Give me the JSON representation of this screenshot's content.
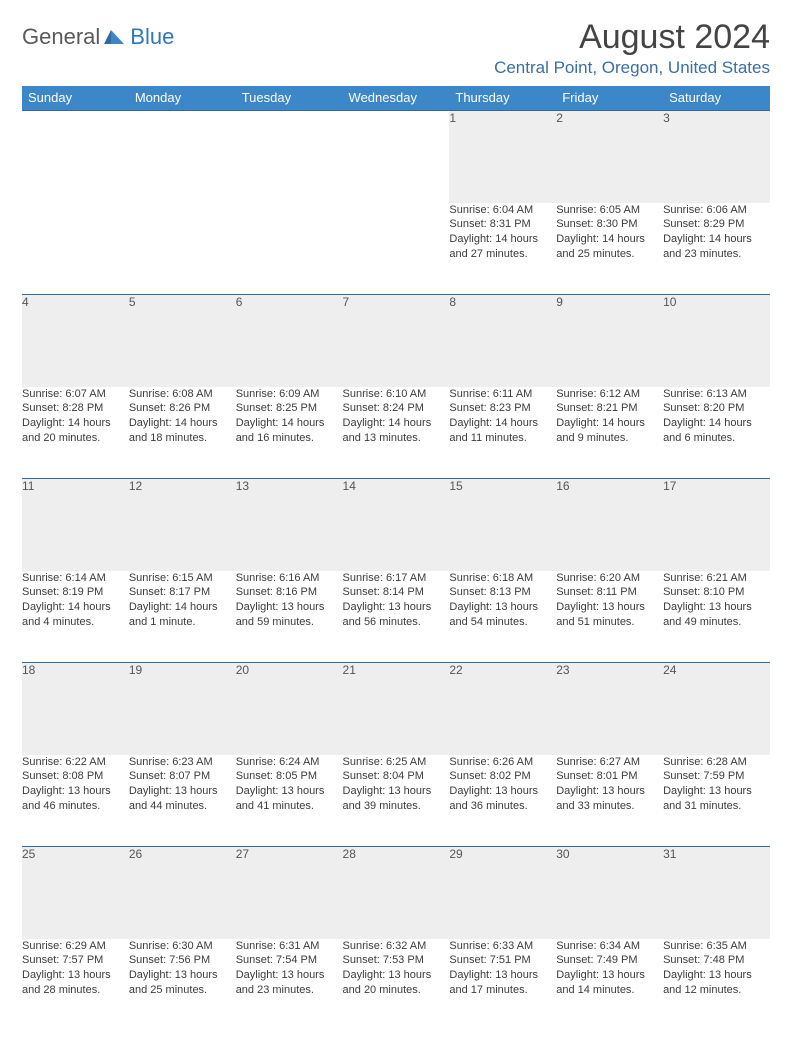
{
  "logo": {
    "part1": "General",
    "part2": "Blue"
  },
  "title": "August 2024",
  "location": "Central Point, Oregon, United States",
  "colors": {
    "header_bg": "#3b87c8",
    "header_text": "#ffffff",
    "accent": "#2f77b6",
    "rule": "#2f6aa0",
    "daynum_bg": "#eeeeee",
    "text": "#3a3a3a",
    "location_text": "#3a6fa3"
  },
  "days_of_week": [
    "Sunday",
    "Monday",
    "Tuesday",
    "Wednesday",
    "Thursday",
    "Friday",
    "Saturday"
  ],
  "weeks": [
    {
      "nums": [
        "",
        "",
        "",
        "",
        "1",
        "2",
        "3"
      ],
      "cells": [
        null,
        null,
        null,
        null,
        {
          "sunrise": "Sunrise: 6:04 AM",
          "sunset": "Sunset: 8:31 PM",
          "day1": "Daylight: 14 hours",
          "day2": "and 27 minutes."
        },
        {
          "sunrise": "Sunrise: 6:05 AM",
          "sunset": "Sunset: 8:30 PM",
          "day1": "Daylight: 14 hours",
          "day2": "and 25 minutes."
        },
        {
          "sunrise": "Sunrise: 6:06 AM",
          "sunset": "Sunset: 8:29 PM",
          "day1": "Daylight: 14 hours",
          "day2": "and 23 minutes."
        }
      ]
    },
    {
      "nums": [
        "4",
        "5",
        "6",
        "7",
        "8",
        "9",
        "10"
      ],
      "cells": [
        {
          "sunrise": "Sunrise: 6:07 AM",
          "sunset": "Sunset: 8:28 PM",
          "day1": "Daylight: 14 hours",
          "day2": "and 20 minutes."
        },
        {
          "sunrise": "Sunrise: 6:08 AM",
          "sunset": "Sunset: 8:26 PM",
          "day1": "Daylight: 14 hours",
          "day2": "and 18 minutes."
        },
        {
          "sunrise": "Sunrise: 6:09 AM",
          "sunset": "Sunset: 8:25 PM",
          "day1": "Daylight: 14 hours",
          "day2": "and 16 minutes."
        },
        {
          "sunrise": "Sunrise: 6:10 AM",
          "sunset": "Sunset: 8:24 PM",
          "day1": "Daylight: 14 hours",
          "day2": "and 13 minutes."
        },
        {
          "sunrise": "Sunrise: 6:11 AM",
          "sunset": "Sunset: 8:23 PM",
          "day1": "Daylight: 14 hours",
          "day2": "and 11 minutes."
        },
        {
          "sunrise": "Sunrise: 6:12 AM",
          "sunset": "Sunset: 8:21 PM",
          "day1": "Daylight: 14 hours",
          "day2": "and 9 minutes."
        },
        {
          "sunrise": "Sunrise: 6:13 AM",
          "sunset": "Sunset: 8:20 PM",
          "day1": "Daylight: 14 hours",
          "day2": "and 6 minutes."
        }
      ]
    },
    {
      "nums": [
        "11",
        "12",
        "13",
        "14",
        "15",
        "16",
        "17"
      ],
      "cells": [
        {
          "sunrise": "Sunrise: 6:14 AM",
          "sunset": "Sunset: 8:19 PM",
          "day1": "Daylight: 14 hours",
          "day2": "and 4 minutes."
        },
        {
          "sunrise": "Sunrise: 6:15 AM",
          "sunset": "Sunset: 8:17 PM",
          "day1": "Daylight: 14 hours",
          "day2": "and 1 minute."
        },
        {
          "sunrise": "Sunrise: 6:16 AM",
          "sunset": "Sunset: 8:16 PM",
          "day1": "Daylight: 13 hours",
          "day2": "and 59 minutes."
        },
        {
          "sunrise": "Sunrise: 6:17 AM",
          "sunset": "Sunset: 8:14 PM",
          "day1": "Daylight: 13 hours",
          "day2": "and 56 minutes."
        },
        {
          "sunrise": "Sunrise: 6:18 AM",
          "sunset": "Sunset: 8:13 PM",
          "day1": "Daylight: 13 hours",
          "day2": "and 54 minutes."
        },
        {
          "sunrise": "Sunrise: 6:20 AM",
          "sunset": "Sunset: 8:11 PM",
          "day1": "Daylight: 13 hours",
          "day2": "and 51 minutes."
        },
        {
          "sunrise": "Sunrise: 6:21 AM",
          "sunset": "Sunset: 8:10 PM",
          "day1": "Daylight: 13 hours",
          "day2": "and 49 minutes."
        }
      ]
    },
    {
      "nums": [
        "18",
        "19",
        "20",
        "21",
        "22",
        "23",
        "24"
      ],
      "cells": [
        {
          "sunrise": "Sunrise: 6:22 AM",
          "sunset": "Sunset: 8:08 PM",
          "day1": "Daylight: 13 hours",
          "day2": "and 46 minutes."
        },
        {
          "sunrise": "Sunrise: 6:23 AM",
          "sunset": "Sunset: 8:07 PM",
          "day1": "Daylight: 13 hours",
          "day2": "and 44 minutes."
        },
        {
          "sunrise": "Sunrise: 6:24 AM",
          "sunset": "Sunset: 8:05 PM",
          "day1": "Daylight: 13 hours",
          "day2": "and 41 minutes."
        },
        {
          "sunrise": "Sunrise: 6:25 AM",
          "sunset": "Sunset: 8:04 PM",
          "day1": "Daylight: 13 hours",
          "day2": "and 39 minutes."
        },
        {
          "sunrise": "Sunrise: 6:26 AM",
          "sunset": "Sunset: 8:02 PM",
          "day1": "Daylight: 13 hours",
          "day2": "and 36 minutes."
        },
        {
          "sunrise": "Sunrise: 6:27 AM",
          "sunset": "Sunset: 8:01 PM",
          "day1": "Daylight: 13 hours",
          "day2": "and 33 minutes."
        },
        {
          "sunrise": "Sunrise: 6:28 AM",
          "sunset": "Sunset: 7:59 PM",
          "day1": "Daylight: 13 hours",
          "day2": "and 31 minutes."
        }
      ]
    },
    {
      "nums": [
        "25",
        "26",
        "27",
        "28",
        "29",
        "30",
        "31"
      ],
      "cells": [
        {
          "sunrise": "Sunrise: 6:29 AM",
          "sunset": "Sunset: 7:57 PM",
          "day1": "Daylight: 13 hours",
          "day2": "and 28 minutes."
        },
        {
          "sunrise": "Sunrise: 6:30 AM",
          "sunset": "Sunset: 7:56 PM",
          "day1": "Daylight: 13 hours",
          "day2": "and 25 minutes."
        },
        {
          "sunrise": "Sunrise: 6:31 AM",
          "sunset": "Sunset: 7:54 PM",
          "day1": "Daylight: 13 hours",
          "day2": "and 23 minutes."
        },
        {
          "sunrise": "Sunrise: 6:32 AM",
          "sunset": "Sunset: 7:53 PM",
          "day1": "Daylight: 13 hours",
          "day2": "and 20 minutes."
        },
        {
          "sunrise": "Sunrise: 6:33 AM",
          "sunset": "Sunset: 7:51 PM",
          "day1": "Daylight: 13 hours",
          "day2": "and 17 minutes."
        },
        {
          "sunrise": "Sunrise: 6:34 AM",
          "sunset": "Sunset: 7:49 PM",
          "day1": "Daylight: 13 hours",
          "day2": "and 14 minutes."
        },
        {
          "sunrise": "Sunrise: 6:35 AM",
          "sunset": "Sunset: 7:48 PM",
          "day1": "Daylight: 13 hours",
          "day2": "and 12 minutes."
        }
      ]
    }
  ]
}
